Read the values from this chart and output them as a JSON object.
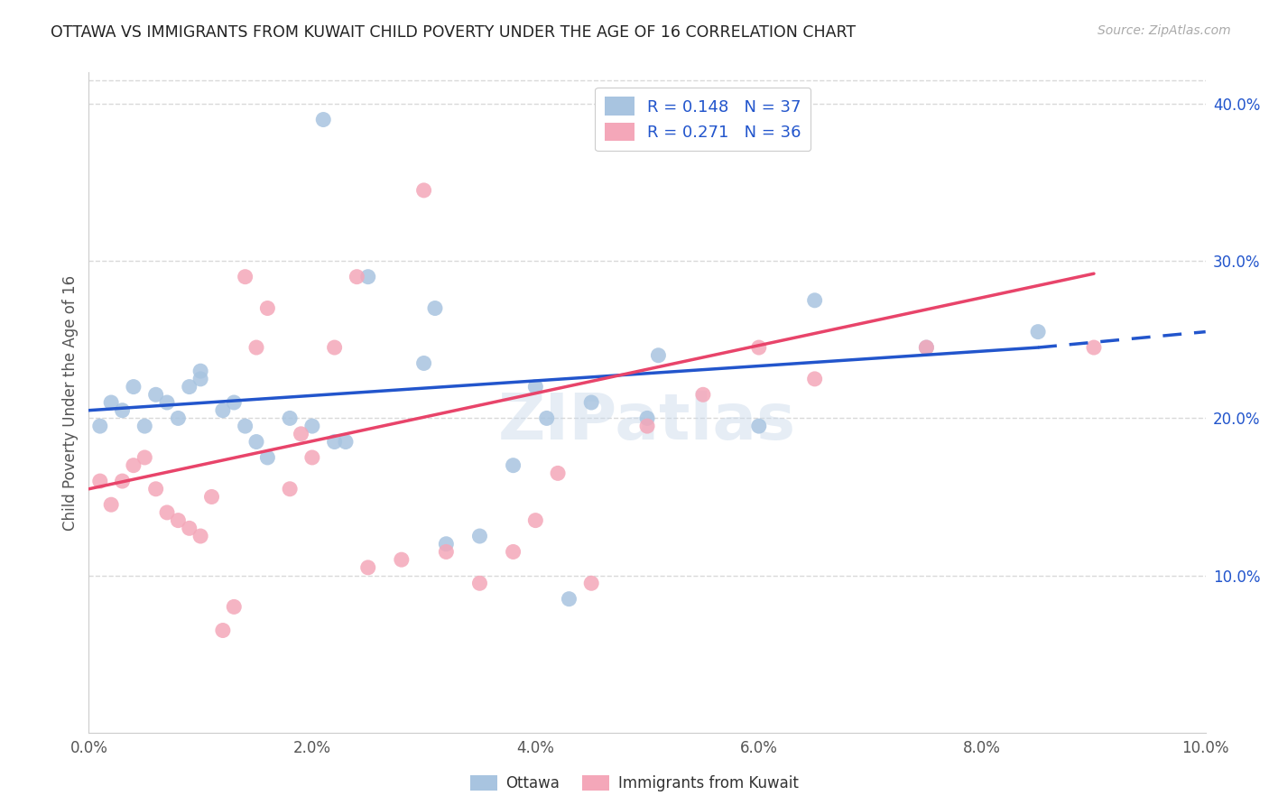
{
  "title": "OTTAWA VS IMMIGRANTS FROM KUWAIT CHILD POVERTY UNDER THE AGE OF 16 CORRELATION CHART",
  "source": "Source: ZipAtlas.com",
  "ylabel": "Child Poverty Under the Age of 16",
  "xlim": [
    0.0,
    0.1
  ],
  "ylim": [
    0.0,
    0.42
  ],
  "xticks": [
    0.0,
    0.02,
    0.04,
    0.06,
    0.08,
    0.1
  ],
  "yticks_right": [
    0.1,
    0.2,
    0.3,
    0.4
  ],
  "ottawa_color": "#a8c4e0",
  "kuwait_color": "#f4a7b9",
  "ottawa_line_color": "#2255cc",
  "kuwait_line_color": "#e8446a",
  "R_ottawa": 0.148,
  "N_ottawa": 37,
  "R_kuwait": 0.271,
  "N_kuwait": 36,
  "ottawa_x": [
    0.001,
    0.002,
    0.003,
    0.004,
    0.005,
    0.006,
    0.007,
    0.008,
    0.009,
    0.01,
    0.01,
    0.012,
    0.013,
    0.014,
    0.015,
    0.016,
    0.018,
    0.02,
    0.021,
    0.022,
    0.023,
    0.025,
    0.03,
    0.031,
    0.032,
    0.035,
    0.038,
    0.04,
    0.041,
    0.043,
    0.045,
    0.05,
    0.051,
    0.06,
    0.065,
    0.075,
    0.085
  ],
  "ottawa_y": [
    0.195,
    0.21,
    0.205,
    0.22,
    0.195,
    0.215,
    0.21,
    0.2,
    0.22,
    0.225,
    0.23,
    0.205,
    0.21,
    0.195,
    0.185,
    0.175,
    0.2,
    0.195,
    0.39,
    0.185,
    0.185,
    0.29,
    0.235,
    0.27,
    0.12,
    0.125,
    0.17,
    0.22,
    0.2,
    0.085,
    0.21,
    0.2,
    0.24,
    0.195,
    0.275,
    0.245,
    0.255
  ],
  "kuwait_x": [
    0.001,
    0.002,
    0.003,
    0.004,
    0.005,
    0.006,
    0.007,
    0.008,
    0.009,
    0.01,
    0.011,
    0.012,
    0.013,
    0.014,
    0.015,
    0.016,
    0.018,
    0.019,
    0.02,
    0.022,
    0.024,
    0.025,
    0.028,
    0.03,
    0.032,
    0.035,
    0.038,
    0.04,
    0.042,
    0.045,
    0.05,
    0.055,
    0.06,
    0.065,
    0.075,
    0.09
  ],
  "kuwait_y": [
    0.16,
    0.145,
    0.16,
    0.17,
    0.175,
    0.155,
    0.14,
    0.135,
    0.13,
    0.125,
    0.15,
    0.065,
    0.08,
    0.29,
    0.245,
    0.27,
    0.155,
    0.19,
    0.175,
    0.245,
    0.29,
    0.105,
    0.11,
    0.345,
    0.115,
    0.095,
    0.115,
    0.135,
    0.165,
    0.095,
    0.195,
    0.215,
    0.245,
    0.225,
    0.245,
    0.245
  ],
  "watermark": "ZIPatlas",
  "background_color": "#ffffff",
  "grid_color": "#d0d0d0",
  "legend_label_ottawa": "R = 0.148   N = 37",
  "legend_label_kuwait": "R = 0.271   N = 36",
  "bottom_legend_ottawa": "Ottawa",
  "bottom_legend_kuwait": "Immigrants from Kuwait"
}
